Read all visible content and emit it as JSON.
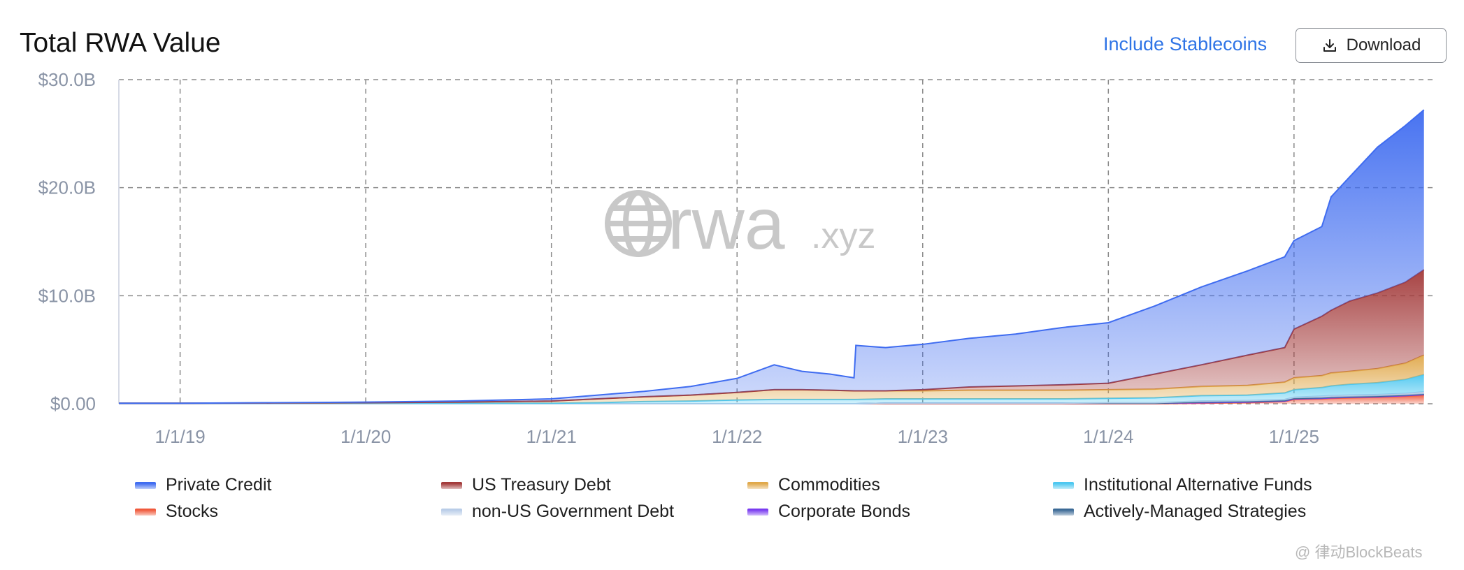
{
  "header": {
    "title": "Total RWA Value",
    "stablecoins_link": "Include Stablecoins",
    "download_label": "Download"
  },
  "watermark": {
    "logo_text": "rwa",
    "logo_suffix": ".xyz",
    "bottom_text": "@ 律动BlockBeats"
  },
  "colors": {
    "private_credit": "#3f6cf0",
    "us_treasury": "#a33a3a",
    "commodities": "#e0a84a",
    "inst_alt_funds": "#4cc7f0",
    "stocks": "#f05a3c",
    "non_us_gov": "#b9cde8",
    "corporate_bonds": "#7a3cf0",
    "actively_managed": "#3c6a96",
    "link": "#2f74e6"
  },
  "chart_data": {
    "type": "area",
    "title": "Total RWA Value",
    "xlabel": "",
    "ylabel": "",
    "x_ticks": [
      "1/1/19",
      "1/1/20",
      "1/1/21",
      "1/1/22",
      "1/1/23",
      "1/1/24",
      "1/1/25"
    ],
    "y_ticks": [
      "$0.00",
      "$10.0B",
      "$20.0B",
      "$30.0B"
    ],
    "ylim_billions": [
      0,
      30
    ],
    "xlim_years": [
      2018.67,
      2025.75
    ],
    "grid": true,
    "legend_position": "bottom",
    "stacked": true,
    "x": [
      2018.67,
      2019.0,
      2019.5,
      2020.0,
      2020.5,
      2021.0,
      2021.25,
      2021.5,
      2021.75,
      2022.0,
      2022.2,
      2022.35,
      2022.5,
      2022.63,
      2022.64,
      2022.8,
      2023.0,
      2023.25,
      2023.5,
      2023.75,
      2024.0,
      2024.25,
      2024.5,
      2024.75,
      2024.95,
      2025.0,
      2025.15,
      2025.2,
      2025.3,
      2025.45,
      2025.6,
      2025.7
    ],
    "series": [
      {
        "name": "Stocks",
        "color_key": "stocks",
        "values": [
          0,
          0,
          0,
          0,
          0,
          0,
          0,
          0,
          0,
          0,
          0,
          0,
          0,
          0,
          0,
          0,
          0,
          0,
          0,
          0,
          0,
          0,
          0.05,
          0.1,
          0.2,
          0.4,
          0.45,
          0.5,
          0.55,
          0.6,
          0.7,
          0.8
        ]
      },
      {
        "name": "Corporate Bonds",
        "color_key": "corporate_bonds",
        "values": [
          0,
          0,
          0,
          0,
          0,
          0,
          0,
          0,
          0,
          0,
          0,
          0,
          0,
          0,
          0,
          0.05,
          0.05,
          0.05,
          0.05,
          0.05,
          0.05,
          0.05,
          0.05,
          0.05,
          0.05,
          0.05,
          0.05,
          0.05,
          0.05,
          0.05,
          0.05,
          0.05
        ]
      },
      {
        "name": "Actively-Managed Strategies",
        "color_key": "actively_managed",
        "values": [
          0,
          0,
          0,
          0,
          0,
          0,
          0,
          0,
          0,
          0,
          0,
          0,
          0,
          0,
          0,
          0,
          0,
          0,
          0,
          0,
          0,
          0,
          0.05,
          0.05,
          0.05,
          0.05,
          0.05,
          0.05,
          0.05,
          0.05,
          0.05,
          0.05
        ]
      },
      {
        "name": "non-US Government Debt",
        "color_key": "non_us_gov",
        "values": [
          0,
          0,
          0,
          0,
          0,
          0,
          0,
          0,
          0,
          0,
          0,
          0,
          0,
          0,
          0,
          0,
          0,
          0,
          0,
          0,
          0.05,
          0.05,
          0.1,
          0.1,
          0.1,
          0.1,
          0.15,
          0.15,
          0.15,
          0.15,
          0.15,
          0.2
        ]
      },
      {
        "name": "Institutional Alternative Funds",
        "color_key": "inst_alt_funds",
        "values": [
          0.05,
          0.05,
          0.05,
          0.05,
          0.05,
          0.05,
          0.1,
          0.2,
          0.25,
          0.35,
          0.4,
          0.4,
          0.4,
          0.4,
          0.4,
          0.4,
          0.4,
          0.4,
          0.4,
          0.4,
          0.4,
          0.45,
          0.5,
          0.5,
          0.6,
          0.7,
          0.8,
          0.9,
          1.0,
          1.1,
          1.3,
          1.6
        ]
      },
      {
        "name": "Commodities",
        "color_key": "commodities",
        "values": [
          0,
          0,
          0.02,
          0.05,
          0.1,
          0.2,
          0.35,
          0.45,
          0.55,
          0.7,
          0.9,
          0.9,
          0.85,
          0.8,
          0.8,
          0.75,
          0.75,
          0.8,
          0.8,
          0.8,
          0.8,
          0.8,
          0.85,
          0.9,
          1.0,
          1.1,
          1.1,
          1.2,
          1.2,
          1.3,
          1.5,
          1.8
        ]
      },
      {
        "name": "US Treasury Debt",
        "color_key": "us_treasury",
        "values": [
          0,
          0,
          0,
          0,
          0,
          0,
          0,
          0,
          0,
          0,
          0,
          0,
          0,
          0,
          0,
          0,
          0.1,
          0.3,
          0.4,
          0.5,
          0.6,
          1.4,
          2.0,
          2.8,
          3.2,
          4.5,
          5.5,
          5.8,
          6.5,
          7.0,
          7.5,
          7.9
        ]
      },
      {
        "name": "Private Credit",
        "color_key": "private_credit",
        "values": [
          0,
          0,
          0.03,
          0.05,
          0.1,
          0.2,
          0.35,
          0.5,
          0.8,
          1.3,
          2.3,
          1.7,
          1.5,
          1.2,
          4.2,
          4.0,
          4.2,
          4.5,
          4.8,
          5.3,
          5.6,
          6.3,
          7.2,
          7.8,
          8.4,
          8.2,
          8.3,
          10.5,
          11.5,
          13.5,
          14.5,
          14.8
        ]
      }
    ]
  },
  "legend": [
    {
      "label": "Private Credit",
      "color_key": "private_credit"
    },
    {
      "label": "US Treasury Debt",
      "color_key": "us_treasury"
    },
    {
      "label": "Commodities",
      "color_key": "commodities"
    },
    {
      "label": "Institutional Alternative Funds",
      "color_key": "inst_alt_funds"
    },
    {
      "label": "Stocks",
      "color_key": "stocks"
    },
    {
      "label": "non-US Government Debt",
      "color_key": "non_us_gov"
    },
    {
      "label": "Corporate Bonds",
      "color_key": "corporate_bonds"
    },
    {
      "label": "Actively-Managed Strategies",
      "color_key": "actively_managed"
    }
  ]
}
